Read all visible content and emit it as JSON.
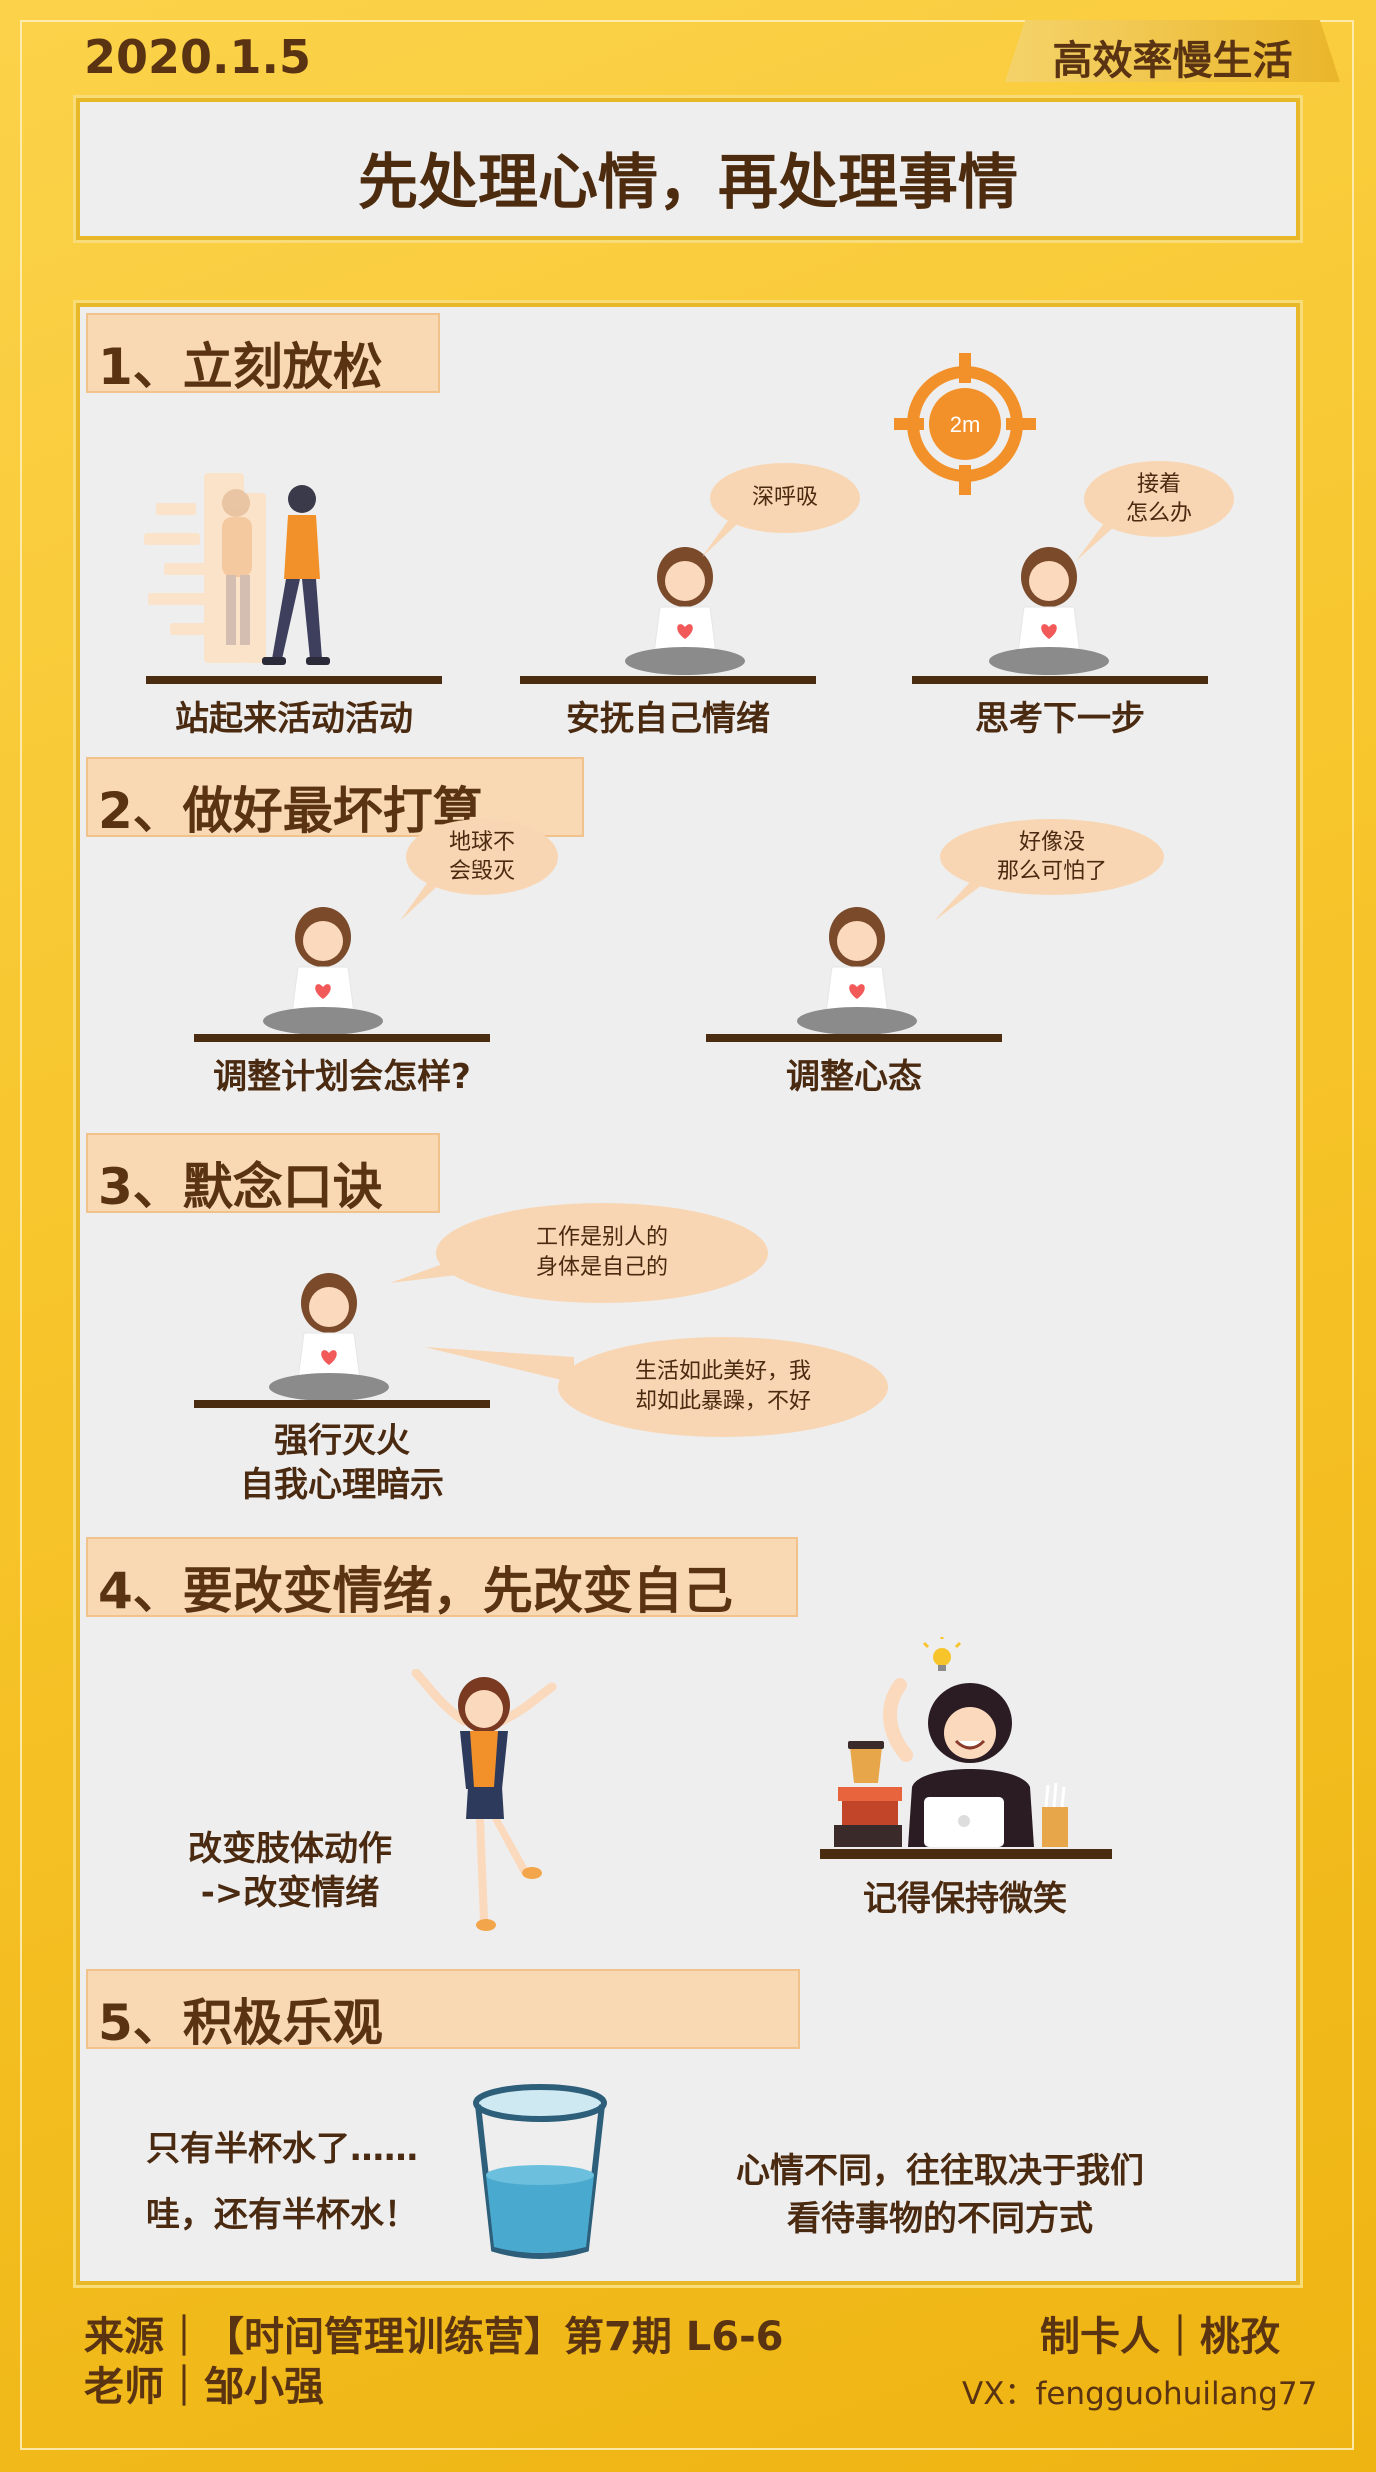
{
  "header": {
    "date": "2020.1.5",
    "tag": "高效率慢生活",
    "title": "先处理心情，再处理事情"
  },
  "sections": [
    {
      "heading": "1、立刻放松",
      "items": [
        {
          "caption": "站起来活动活动"
        },
        {
          "caption": "安抚自己情绪",
          "bubble": "深呼吸"
        },
        {
          "caption": "思考下一步",
          "bubble_line1": "接着",
          "bubble_line2": "怎么办",
          "timer_label": "2m"
        }
      ]
    },
    {
      "heading": "2、做好最坏打算",
      "items": [
        {
          "caption": "调整计划会怎样?",
          "bubble_line1": "地球不",
          "bubble_line2": "会毁灭"
        },
        {
          "caption": "调整心态",
          "bubble_line1": "好像没",
          "bubble_line2": "那么可怕了"
        }
      ]
    },
    {
      "heading": "3、默念口诀",
      "items": [
        {
          "caption_line1": "强行灭火",
          "caption_line2": "自我心理暗示",
          "bubble_a_line1": "工作是别人的",
          "bubble_a_line2": "身体是自己的",
          "bubble_b_line1": "生活如此美好，我",
          "bubble_b_line2": "却如此暴躁，不好"
        }
      ]
    },
    {
      "heading": "4、要改变情绪，先改变自己",
      "items": [
        {
          "caption_line1": "改变肢体动作",
          "caption_line2": "->改变情绪"
        },
        {
          "caption": "记得保持微笑"
        }
      ]
    },
    {
      "heading": "5、积极乐观",
      "items": [
        {
          "line1": "只有半杯水了……",
          "line2": "哇，还有半杯水！"
        },
        {
          "line1": "心情不同，往往取决于我们",
          "line2": "看待事物的不同方式"
        }
      ]
    }
  ],
  "footer": {
    "source": "来源｜【时间管理训练营】第7期  L6-6",
    "teacher": "老师｜邹小强",
    "maker": "制卡人｜桃孜",
    "vx": "VX：fengguohuilang77"
  },
  "colors": {
    "background": "#f7c52b",
    "panel": "#eeeeee",
    "heading_fill": "#f9d8b4",
    "text_brown": "#5a3312",
    "accent_orange": "#f2912a"
  },
  "icons": [
    "walking-person-icon",
    "meditating-girl-icon",
    "target-timer-icon",
    "jumping-girl-icon",
    "smiling-woman-laptop-icon",
    "water-glass-icon",
    "lightbulb-icon"
  ]
}
